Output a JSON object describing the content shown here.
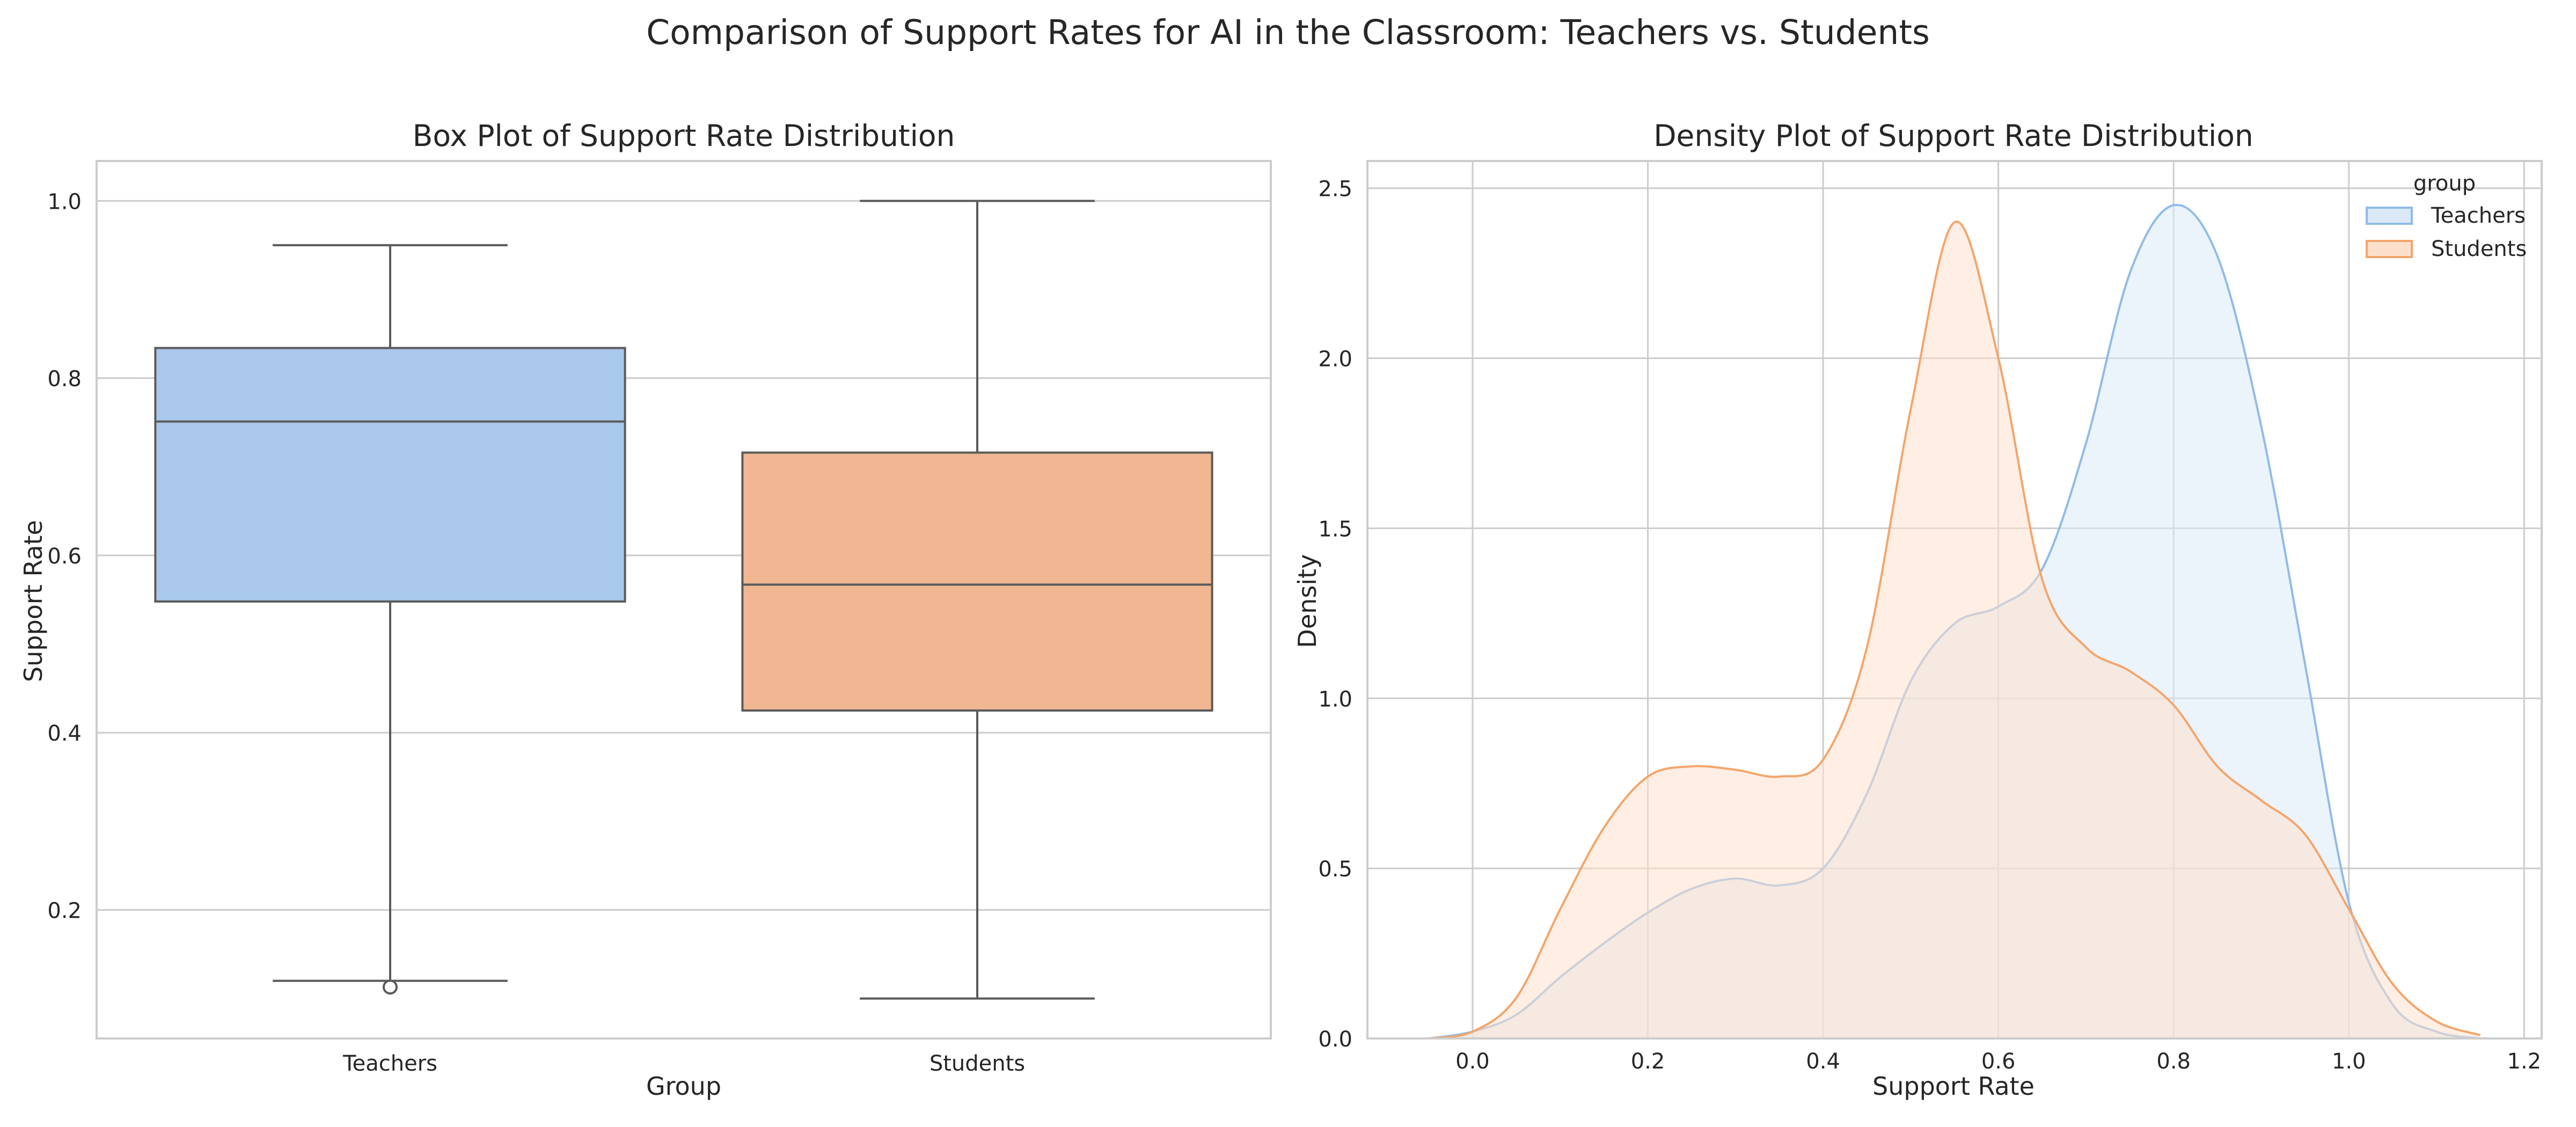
{
  "figure": {
    "title": "Comparison of Support Rates for AI in the Classroom: Teachers vs. Students"
  },
  "chart_data": [
    {
      "type": "box",
      "title": "Box Plot of Support Rate Distribution",
      "xlabel": "Group",
      "ylabel": "Support Rate",
      "ylim": [
        0.055,
        1.045
      ],
      "yticks": [
        0.2,
        0.4,
        0.6,
        0.8,
        1.0
      ],
      "grid": true,
      "categories": [
        "Teachers",
        "Students"
      ],
      "boxes": [
        {
          "name": "Teachers",
          "whisker_low": 0.12,
          "q1": 0.548,
          "median": 0.751,
          "q3": 0.834,
          "whisker_high": 0.95,
          "outliers": [
            0.113
          ],
          "color": "#a9c8eb"
        },
        {
          "name": "Students",
          "whisker_low": 0.1,
          "q1": 0.425,
          "median": 0.567,
          "q3": 0.716,
          "whisker_high": 1.0,
          "outliers": [],
          "color": "#f0b792"
        }
      ]
    },
    {
      "type": "area",
      "title": "Density Plot of Support Rate Distribution",
      "xlabel": "Support Rate",
      "ylabel": "Density",
      "xlim": [
        -0.12,
        1.22
      ],
      "ylim": [
        0,
        2.58
      ],
      "xticks": [
        0.0,
        0.2,
        0.4,
        0.6,
        0.8,
        1.0,
        1.2
      ],
      "yticks": [
        0.0,
        0.5,
        1.0,
        1.5,
        2.0,
        2.5
      ],
      "grid": true,
      "legend": {
        "title": "group",
        "placement": "top-right"
      },
      "x": [
        -0.05,
        0.0,
        0.05,
        0.1,
        0.15,
        0.2,
        0.25,
        0.3,
        0.35,
        0.4,
        0.45,
        0.5,
        0.55,
        0.6,
        0.65,
        0.7,
        0.75,
        0.8,
        0.85,
        0.9,
        0.95,
        1.0,
        1.05,
        1.1,
        1.15
      ],
      "series": [
        {
          "name": "Teachers",
          "color": "#8fbbe8",
          "fill": "#dbe9f7",
          "values": [
            0.0,
            0.02,
            0.07,
            0.18,
            0.28,
            0.37,
            0.44,
            0.47,
            0.45,
            0.5,
            0.72,
            1.05,
            1.22,
            1.27,
            1.38,
            1.75,
            2.25,
            2.45,
            2.3,
            1.8,
            1.1,
            0.4,
            0.1,
            0.02,
            0.0
          ]
        },
        {
          "name": "Students",
          "color": "#f3a56c",
          "fill": "#fde0cc",
          "values": [
            0.0,
            0.02,
            0.12,
            0.38,
            0.62,
            0.77,
            0.8,
            0.79,
            0.77,
            0.82,
            1.15,
            1.85,
            2.4,
            2.0,
            1.35,
            1.15,
            1.08,
            0.98,
            0.8,
            0.7,
            0.6,
            0.38,
            0.16,
            0.05,
            0.01
          ]
        }
      ]
    }
  ]
}
